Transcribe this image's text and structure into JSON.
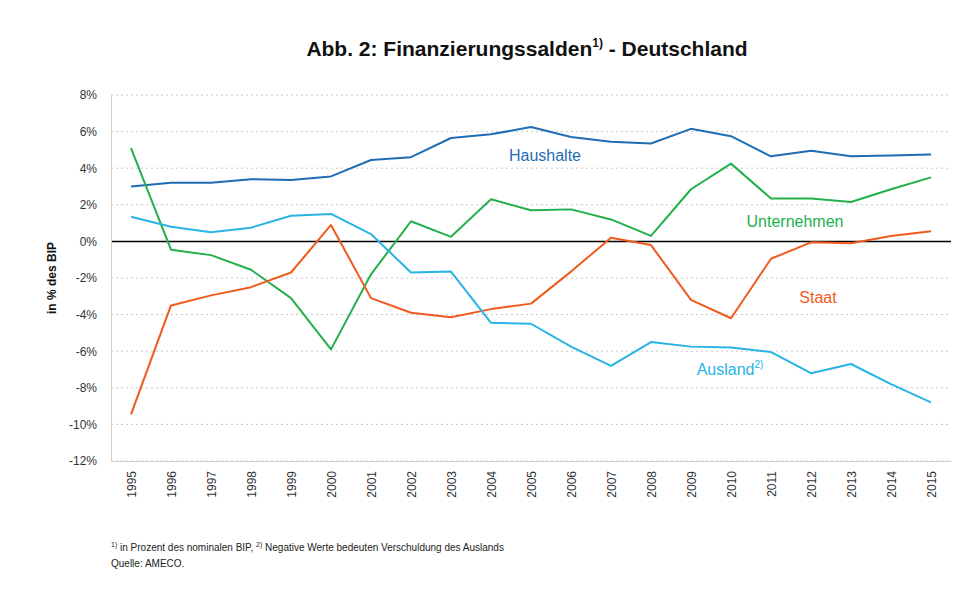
{
  "chart_data": {
    "type": "line",
    "title": "Abb. 2: Finanzierungssalden",
    "title_note": "1)",
    "title_suffix": " - Deutschland",
    "y_label": "in % des BIP",
    "footnotes": [
      {
        "mark": "1)",
        "text": " in Prozent des nominalen BIP, "
      },
      {
        "mark": "2)",
        "text": " Negative Werte bedeuten Verschuldung des Auslands"
      }
    ],
    "source": "Quelle: AMECO.",
    "categories": [
      "1995",
      "1996",
      "1997",
      "1998",
      "1999",
      "2000",
      "2001",
      "2002",
      "2003",
      "2004",
      "2005",
      "2006",
      "2007",
      "2008",
      "2009",
      "2010",
      "2011",
      "2012",
      "2013",
      "2014",
      "2015"
    ],
    "series": [
      {
        "name": "Haushalte",
        "color": "#1f6db3",
        "values": [
          3.0,
          3.2,
          3.2,
          3.4,
          3.35,
          3.55,
          4.45,
          4.6,
          5.65,
          5.85,
          6.25,
          5.7,
          5.45,
          5.35,
          6.15,
          5.75,
          4.65,
          4.95,
          4.65,
          4.7,
          4.75
        ]
      },
      {
        "name": "Unternehmen",
        "color": "#22b04b",
        "values": [
          5.1,
          -0.45,
          -0.75,
          -1.55,
          -3.1,
          -5.9,
          -1.8,
          1.1,
          0.25,
          2.3,
          1.7,
          1.75,
          1.2,
          0.3,
          2.85,
          4.25,
          2.35,
          2.35,
          2.15,
          2.85,
          3.5
        ]
      },
      {
        "name": "Staat",
        "color": "#f05a1c",
        "values": [
          -9.45,
          -3.5,
          -2.95,
          -2.5,
          -1.7,
          0.9,
          -3.1,
          -3.9,
          -4.15,
          -3.7,
          -3.4,
          -1.65,
          0.2,
          -0.2,
          -3.2,
          -4.2,
          -0.95,
          -0.05,
          -0.1,
          0.3,
          0.55
        ]
      },
      {
        "name": "Ausland",
        "label_note": "2)",
        "color": "#27b4e4",
        "values": [
          1.35,
          0.8,
          0.5,
          0.75,
          1.4,
          1.5,
          0.4,
          -1.7,
          -1.65,
          -4.45,
          -4.5,
          -5.75,
          -6.8,
          -5.5,
          -5.75,
          -5.8,
          -6.05,
          -7.2,
          -6.7,
          -7.8,
          -8.8
        ]
      }
    ],
    "ylim": [
      -12,
      8
    ],
    "yticks": [
      {
        "value": -12,
        "label": "-12%"
      },
      {
        "value": -10,
        "label": "-10%"
      },
      {
        "value": -8,
        "label": "-8%"
      },
      {
        "value": -6,
        "label": "-6%"
      },
      {
        "value": -4,
        "label": "-4%"
      },
      {
        "value": -2,
        "label": "-2%"
      },
      {
        "value": 0,
        "label": "0%"
      },
      {
        "value": 2,
        "label": "2%"
      },
      {
        "value": 4,
        "label": "4%"
      },
      {
        "value": 6,
        "label": "6%"
      },
      {
        "value": 8,
        "label": "8%"
      }
    ],
    "grid": true
  }
}
